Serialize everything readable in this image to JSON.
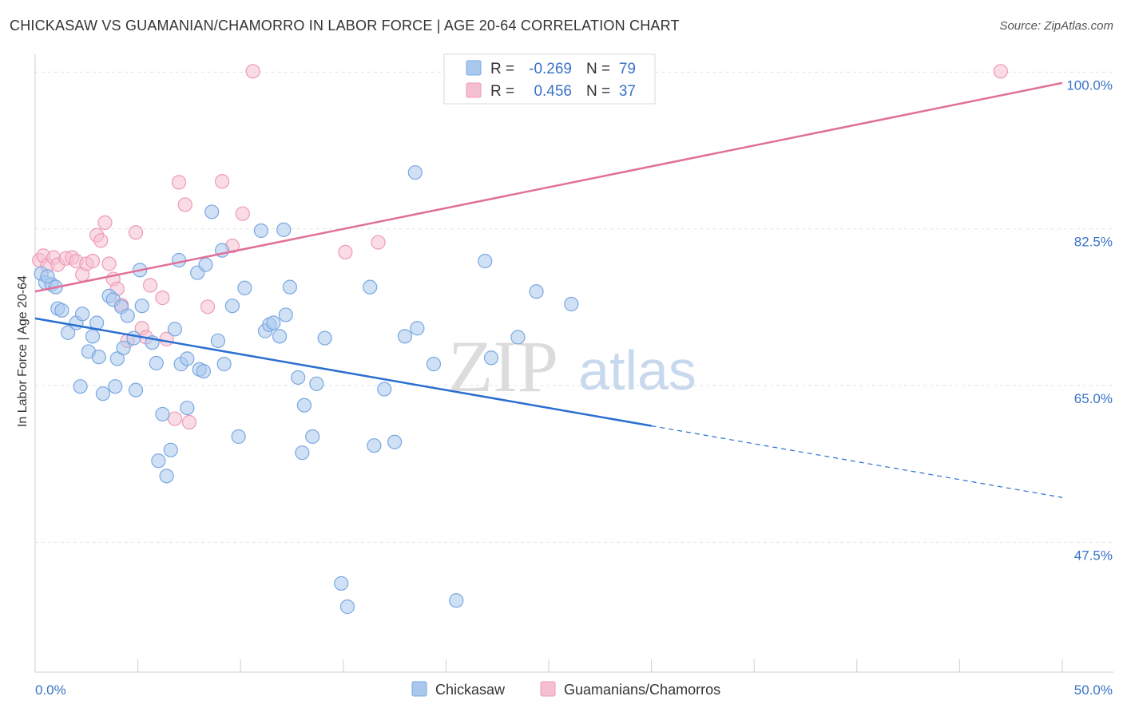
{
  "title": "CHICKASAW VS GUAMANIAN/CHAMORRO IN LABOR FORCE | AGE 20-64 CORRELATION CHART",
  "source": "Source: ZipAtlas.com",
  "watermark": {
    "zip": "ZIP",
    "atlas": "atlas"
  },
  "colors": {
    "blue_fill": "#aac8ee",
    "blue_edge": "#7aa8e0",
    "blue_line": "#2a6fd0",
    "pink_fill": "#f6bfd0",
    "pink_edge": "#ee9ab8",
    "pink_line": "#e07098",
    "tick_text": "#3a72c8",
    "grid": "#dde3ea"
  },
  "legend": {
    "blue": {
      "r_label": "R =",
      "r_value": "-0.269",
      "n_label": "N =",
      "n_value": "79"
    },
    "pink": {
      "r_label": "R =",
      "r_value": "0.456",
      "n_label": "N =",
      "n_value": "37"
    }
  },
  "bottom_legend": {
    "blue": "Chickasaw",
    "pink": "Guamanians/Chamorros"
  },
  "chart_data": {
    "type": "scatter",
    "title": "CHICKASAW VS GUAMANIAN/CHAMORRO IN LABOR FORCE | AGE 20-64 CORRELATION CHART",
    "xlabel": "",
    "ylabel": "In Labor Force | Age 20-64",
    "xlim": [
      0,
      50
    ],
    "ylim": [
      33,
      102
    ],
    "x_tick_labels": [
      "0.0%",
      "50.0%"
    ],
    "y_ticks": [
      47.5,
      65.0,
      82.5,
      100.0
    ],
    "y_tick_labels": [
      "47.5%",
      "65.0%",
      "82.5%",
      "100.0%"
    ],
    "grid": true,
    "legend_placement": "top-center",
    "series": [
      {
        "name": "Chickasaw",
        "trend": {
          "x0": 0,
          "y0": 72.5,
          "x1": 30,
          "y1": 60.5,
          "dashed_to_x": 50,
          "dashed_to_y": 52.5
        },
        "points": [
          [
            0.3,
            77.5
          ],
          [
            0.5,
            76.5
          ],
          [
            0.8,
            76.3
          ],
          [
            0.6,
            77.2
          ],
          [
            1.0,
            76.0
          ],
          [
            1.1,
            73.6
          ],
          [
            1.3,
            73.4
          ],
          [
            1.6,
            70.9
          ],
          [
            2.0,
            72.0
          ],
          [
            2.2,
            64.9
          ],
          [
            2.3,
            73.0
          ],
          [
            2.6,
            68.8
          ],
          [
            2.8,
            70.5
          ],
          [
            3.0,
            72.0
          ],
          [
            3.1,
            68.2
          ],
          [
            3.3,
            64.1
          ],
          [
            3.6,
            75.0
          ],
          [
            3.8,
            74.6
          ],
          [
            3.9,
            64.9
          ],
          [
            4.0,
            68.0
          ],
          [
            4.2,
            73.8
          ],
          [
            4.3,
            69.2
          ],
          [
            4.5,
            72.8
          ],
          [
            4.8,
            70.3
          ],
          [
            4.9,
            64.5
          ],
          [
            5.1,
            77.9
          ],
          [
            5.2,
            73.9
          ],
          [
            5.7,
            69.8
          ],
          [
            5.9,
            67.5
          ],
          [
            6.0,
            56.6
          ],
          [
            6.2,
            61.8
          ],
          [
            6.4,
            54.9
          ],
          [
            6.6,
            57.8
          ],
          [
            6.8,
            71.3
          ],
          [
            7.0,
            79.0
          ],
          [
            7.1,
            67.4
          ],
          [
            7.4,
            68.0
          ],
          [
            7.4,
            62.5
          ],
          [
            7.9,
            77.6
          ],
          [
            8.0,
            66.8
          ],
          [
            8.2,
            66.6
          ],
          [
            8.3,
            78.5
          ],
          [
            8.6,
            84.4
          ],
          [
            8.9,
            70.0
          ],
          [
            9.1,
            80.1
          ],
          [
            9.2,
            67.4
          ],
          [
            9.6,
            73.9
          ],
          [
            9.9,
            59.3
          ],
          [
            10.2,
            75.9
          ],
          [
            11.0,
            82.3
          ],
          [
            11.2,
            71.1
          ],
          [
            11.4,
            71.8
          ],
          [
            11.6,
            72.0
          ],
          [
            11.9,
            70.5
          ],
          [
            12.1,
            82.4
          ],
          [
            12.2,
            72.9
          ],
          [
            12.4,
            76.0
          ],
          [
            12.8,
            65.9
          ],
          [
            13.0,
            57.5
          ],
          [
            13.1,
            62.8
          ],
          [
            13.5,
            59.3
          ],
          [
            13.7,
            65.2
          ],
          [
            14.1,
            70.3
          ],
          [
            14.9,
            42.9
          ],
          [
            15.2,
            40.3
          ],
          [
            16.3,
            76.0
          ],
          [
            16.5,
            58.3
          ],
          [
            17.0,
            64.6
          ],
          [
            17.5,
            58.7
          ],
          [
            18.0,
            70.5
          ],
          [
            18.5,
            88.8
          ],
          [
            18.6,
            71.4
          ],
          [
            19.4,
            67.4
          ],
          [
            20.5,
            41.0
          ],
          [
            21.9,
            78.9
          ],
          [
            22.2,
            68.1
          ],
          [
            23.5,
            70.4
          ],
          [
            24.4,
            75.5
          ],
          [
            26.1,
            74.1
          ]
        ]
      },
      {
        "name": "Guamanians/Chamorros",
        "trend": {
          "x0": 0,
          "y0": 75.5,
          "x1": 50,
          "y1": 98.8
        },
        "points": [
          [
            0.2,
            79.0
          ],
          [
            0.4,
            79.5
          ],
          [
            0.6,
            78.4
          ],
          [
            0.9,
            79.3
          ],
          [
            1.1,
            78.5
          ],
          [
            1.5,
            79.2
          ],
          [
            1.8,
            79.3
          ],
          [
            2.0,
            78.9
          ],
          [
            2.3,
            77.4
          ],
          [
            2.5,
            78.6
          ],
          [
            2.8,
            78.9
          ],
          [
            3.0,
            81.8
          ],
          [
            3.2,
            81.2
          ],
          [
            3.4,
            83.2
          ],
          [
            3.6,
            78.6
          ],
          [
            3.8,
            76.9
          ],
          [
            4.0,
            75.8
          ],
          [
            4.2,
            74.0
          ],
          [
            4.5,
            70.0
          ],
          [
            4.9,
            82.1
          ],
          [
            5.2,
            71.4
          ],
          [
            5.4,
            70.4
          ],
          [
            5.6,
            76.2
          ],
          [
            6.2,
            74.8
          ],
          [
            6.4,
            70.2
          ],
          [
            6.8,
            61.3
          ],
          [
            7.0,
            87.7
          ],
          [
            7.3,
            85.2
          ],
          [
            7.5,
            60.9
          ],
          [
            8.4,
            73.8
          ],
          [
            9.1,
            87.8
          ],
          [
            9.6,
            80.6
          ],
          [
            10.1,
            84.2
          ],
          [
            10.6,
            100.1
          ],
          [
            15.1,
            79.9
          ],
          [
            16.7,
            81.0
          ],
          [
            47.0,
            100.1
          ]
        ]
      }
    ]
  }
}
